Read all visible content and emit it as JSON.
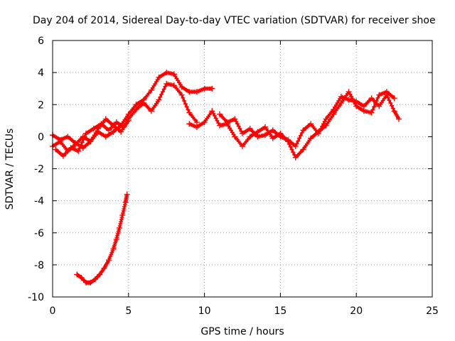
{
  "chart_data": {
    "type": "scatter",
    "title": "Day 204 of 2014, Sidereal Day-to-day VTEC variation (SDTVAR) for receiver shoe",
    "xlabel": "GPS time / hours",
    "ylabel": "SDTVAR / TECUs",
    "xlim": [
      0,
      25
    ],
    "ylim": [
      -10,
      6
    ],
    "xticks": [
      0,
      5,
      10,
      15,
      20,
      25
    ],
    "yticks": [
      -10,
      -8,
      -6,
      -4,
      -2,
      0,
      2,
      4,
      6
    ],
    "grid": true,
    "marker": "+",
    "color": "#ff0000",
    "series": [
      {
        "name": "track-a",
        "x": [
          0.0,
          0.5,
          1.0,
          1.5,
          2.0,
          2.5,
          3.0,
          3.5,
          4.0,
          4.5,
          5.0,
          5.5,
          6.0,
          6.5,
          7.0,
          7.5,
          8.0,
          8.5,
          9.0,
          9.5,
          10.0,
          10.5
        ],
        "y": [
          -0.6,
          -0.3,
          -0.9,
          -0.5,
          0.0,
          -0.3,
          0.3,
          0.0,
          0.3,
          0.7,
          1.4,
          2.0,
          2.3,
          2.9,
          3.7,
          4.0,
          3.9,
          3.1,
          2.8,
          2.8,
          3.0,
          3.0
        ]
      },
      {
        "name": "track-b",
        "x": [
          0.0,
          0.5,
          1.0,
          1.5,
          2.0,
          2.5,
          3.0,
          3.5,
          4.0,
          4.5,
          5.0,
          5.5,
          6.0,
          6.5,
          7.0,
          7.5,
          8.0,
          8.5,
          9.0,
          9.5
        ],
        "y": [
          0.1,
          -0.2,
          0.0,
          -0.4,
          -0.7,
          -0.3,
          0.5,
          1.1,
          0.7,
          0.3,
          1.1,
          1.7,
          2.1,
          1.6,
          2.3,
          3.3,
          3.2,
          2.6,
          1.5,
          0.9
        ]
      },
      {
        "name": "track-c",
        "x": [
          0.2,
          0.7,
          1.2,
          1.7,
          2.2,
          2.7,
          3.2,
          3.7,
          4.2,
          4.7,
          5.0
        ],
        "y": [
          -0.8,
          -1.2,
          -0.7,
          -0.9,
          0.2,
          0.5,
          0.8,
          0.4,
          0.9,
          0.6,
          1.0
        ]
      },
      {
        "name": "track-d",
        "x": [
          9.0,
          9.5,
          10.0,
          10.5,
          11.0,
          11.5,
          12.0,
          12.5,
          13.0,
          13.5,
          14.0,
          14.5,
          15.0,
          15.5,
          16.0,
          16.5,
          17.0,
          17.5,
          18.0,
          18.5,
          19.0,
          19.5,
          20.0,
          20.5,
          21.0,
          21.5,
          22.0,
          22.5
        ],
        "y": [
          0.8,
          0.6,
          0.9,
          1.6,
          0.7,
          0.8,
          0.0,
          -0.6,
          0.0,
          0.3,
          0.6,
          -0.1,
          0.2,
          -0.3,
          -1.3,
          -0.8,
          -0.1,
          0.3,
          0.7,
          1.4,
          2.1,
          2.8,
          1.9,
          1.6,
          1.5,
          2.6,
          2.8,
          2.4
        ]
      },
      {
        "name": "track-e",
        "x": [
          11.0,
          11.5,
          12.0,
          12.5,
          13.0,
          13.5,
          14.0,
          14.5,
          15.0,
          15.5,
          16.0,
          16.5,
          17.0,
          17.5,
          18.0,
          18.5,
          19.0,
          19.5,
          20.0,
          20.5,
          21.0,
          21.5,
          22.0,
          22.5,
          22.8
        ],
        "y": [
          1.4,
          0.9,
          1.1,
          0.2,
          0.5,
          0.0,
          0.1,
          0.4,
          0.0,
          -0.2,
          -0.6,
          0.4,
          0.8,
          0.2,
          1.1,
          1.7,
          2.5,
          2.3,
          2.2,
          1.9,
          2.4,
          1.9,
          2.6,
          1.6,
          1.1
        ]
      },
      {
        "name": "track-f",
        "x": [
          1.6,
          1.9,
          2.2,
          2.5,
          2.8,
          3.1,
          3.4,
          3.7,
          4.0,
          4.2,
          4.4,
          4.6,
          4.8,
          4.9
        ],
        "y": [
          -8.6,
          -8.8,
          -9.1,
          -9.1,
          -8.9,
          -8.6,
          -8.2,
          -7.7,
          -7.0,
          -6.4,
          -5.7,
          -4.9,
          -4.1,
          -3.6
        ]
      }
    ]
  }
}
